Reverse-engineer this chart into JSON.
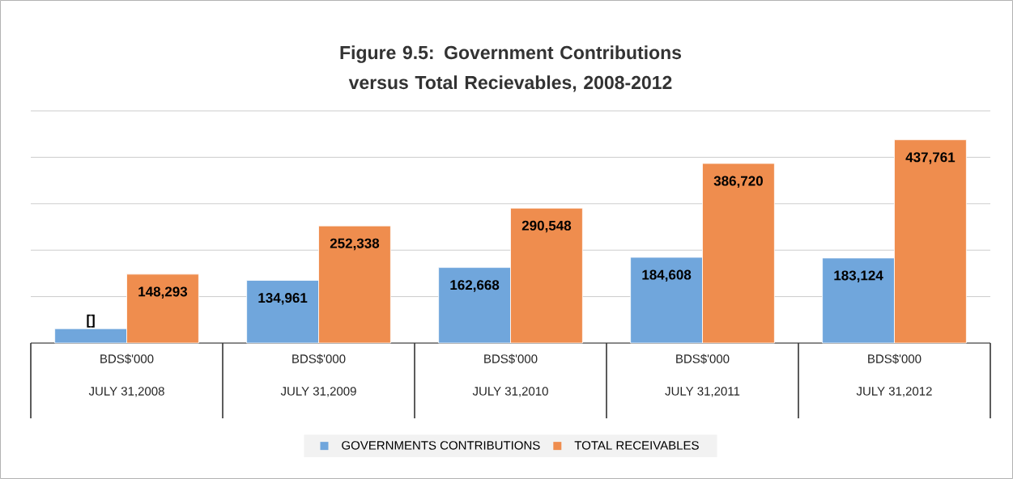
{
  "chart_data": {
    "type": "bar",
    "title": "Figure 9.5: Government Contributions versus Total Recievables, 2008-2012",
    "categories": [
      "JULY 31,2008",
      "JULY 31,2009",
      "JULY 31,2010",
      "JULY 31,2011",
      "JULY 31,2012"
    ],
    "annotations": [
      "BDS$'000",
      "BDS$'000",
      "BDS$'000",
      "BDS$'000",
      "BDS$'000"
    ],
    "series": [
      {
        "name": "GOVERNMENTS CONTRIBUTIONS",
        "color": "#70a6dc",
        "values": [
          31000,
          134961,
          162668,
          184608,
          183124
        ],
        "value_labels": [
          "[]",
          "134,961",
          "162,668",
          "184,608",
          "183,124"
        ]
      },
      {
        "name": "TOTAL RECEIVABLES",
        "color": "#ef8d4e",
        "values": [
          148293,
          252338,
          290548,
          386720,
          437761
        ],
        "value_labels": [
          "148,293",
          "252,338",
          "290,548",
          "386,720",
          "437,761"
        ]
      }
    ],
    "ylim": [
      0,
      500000
    ],
    "yticks": [
      {
        "value": 0,
        "label": null
      },
      {
        "value": 100000,
        "label": null
      },
      {
        "value": 200000,
        "label": null
      },
      {
        "value": 300000,
        "label": null
      },
      {
        "value": 400000,
        "label": null
      },
      {
        "value": 500000,
        "label": null
      }
    ],
    "grid": "y",
    "legend": "bottom",
    "tick_labels": "x"
  }
}
